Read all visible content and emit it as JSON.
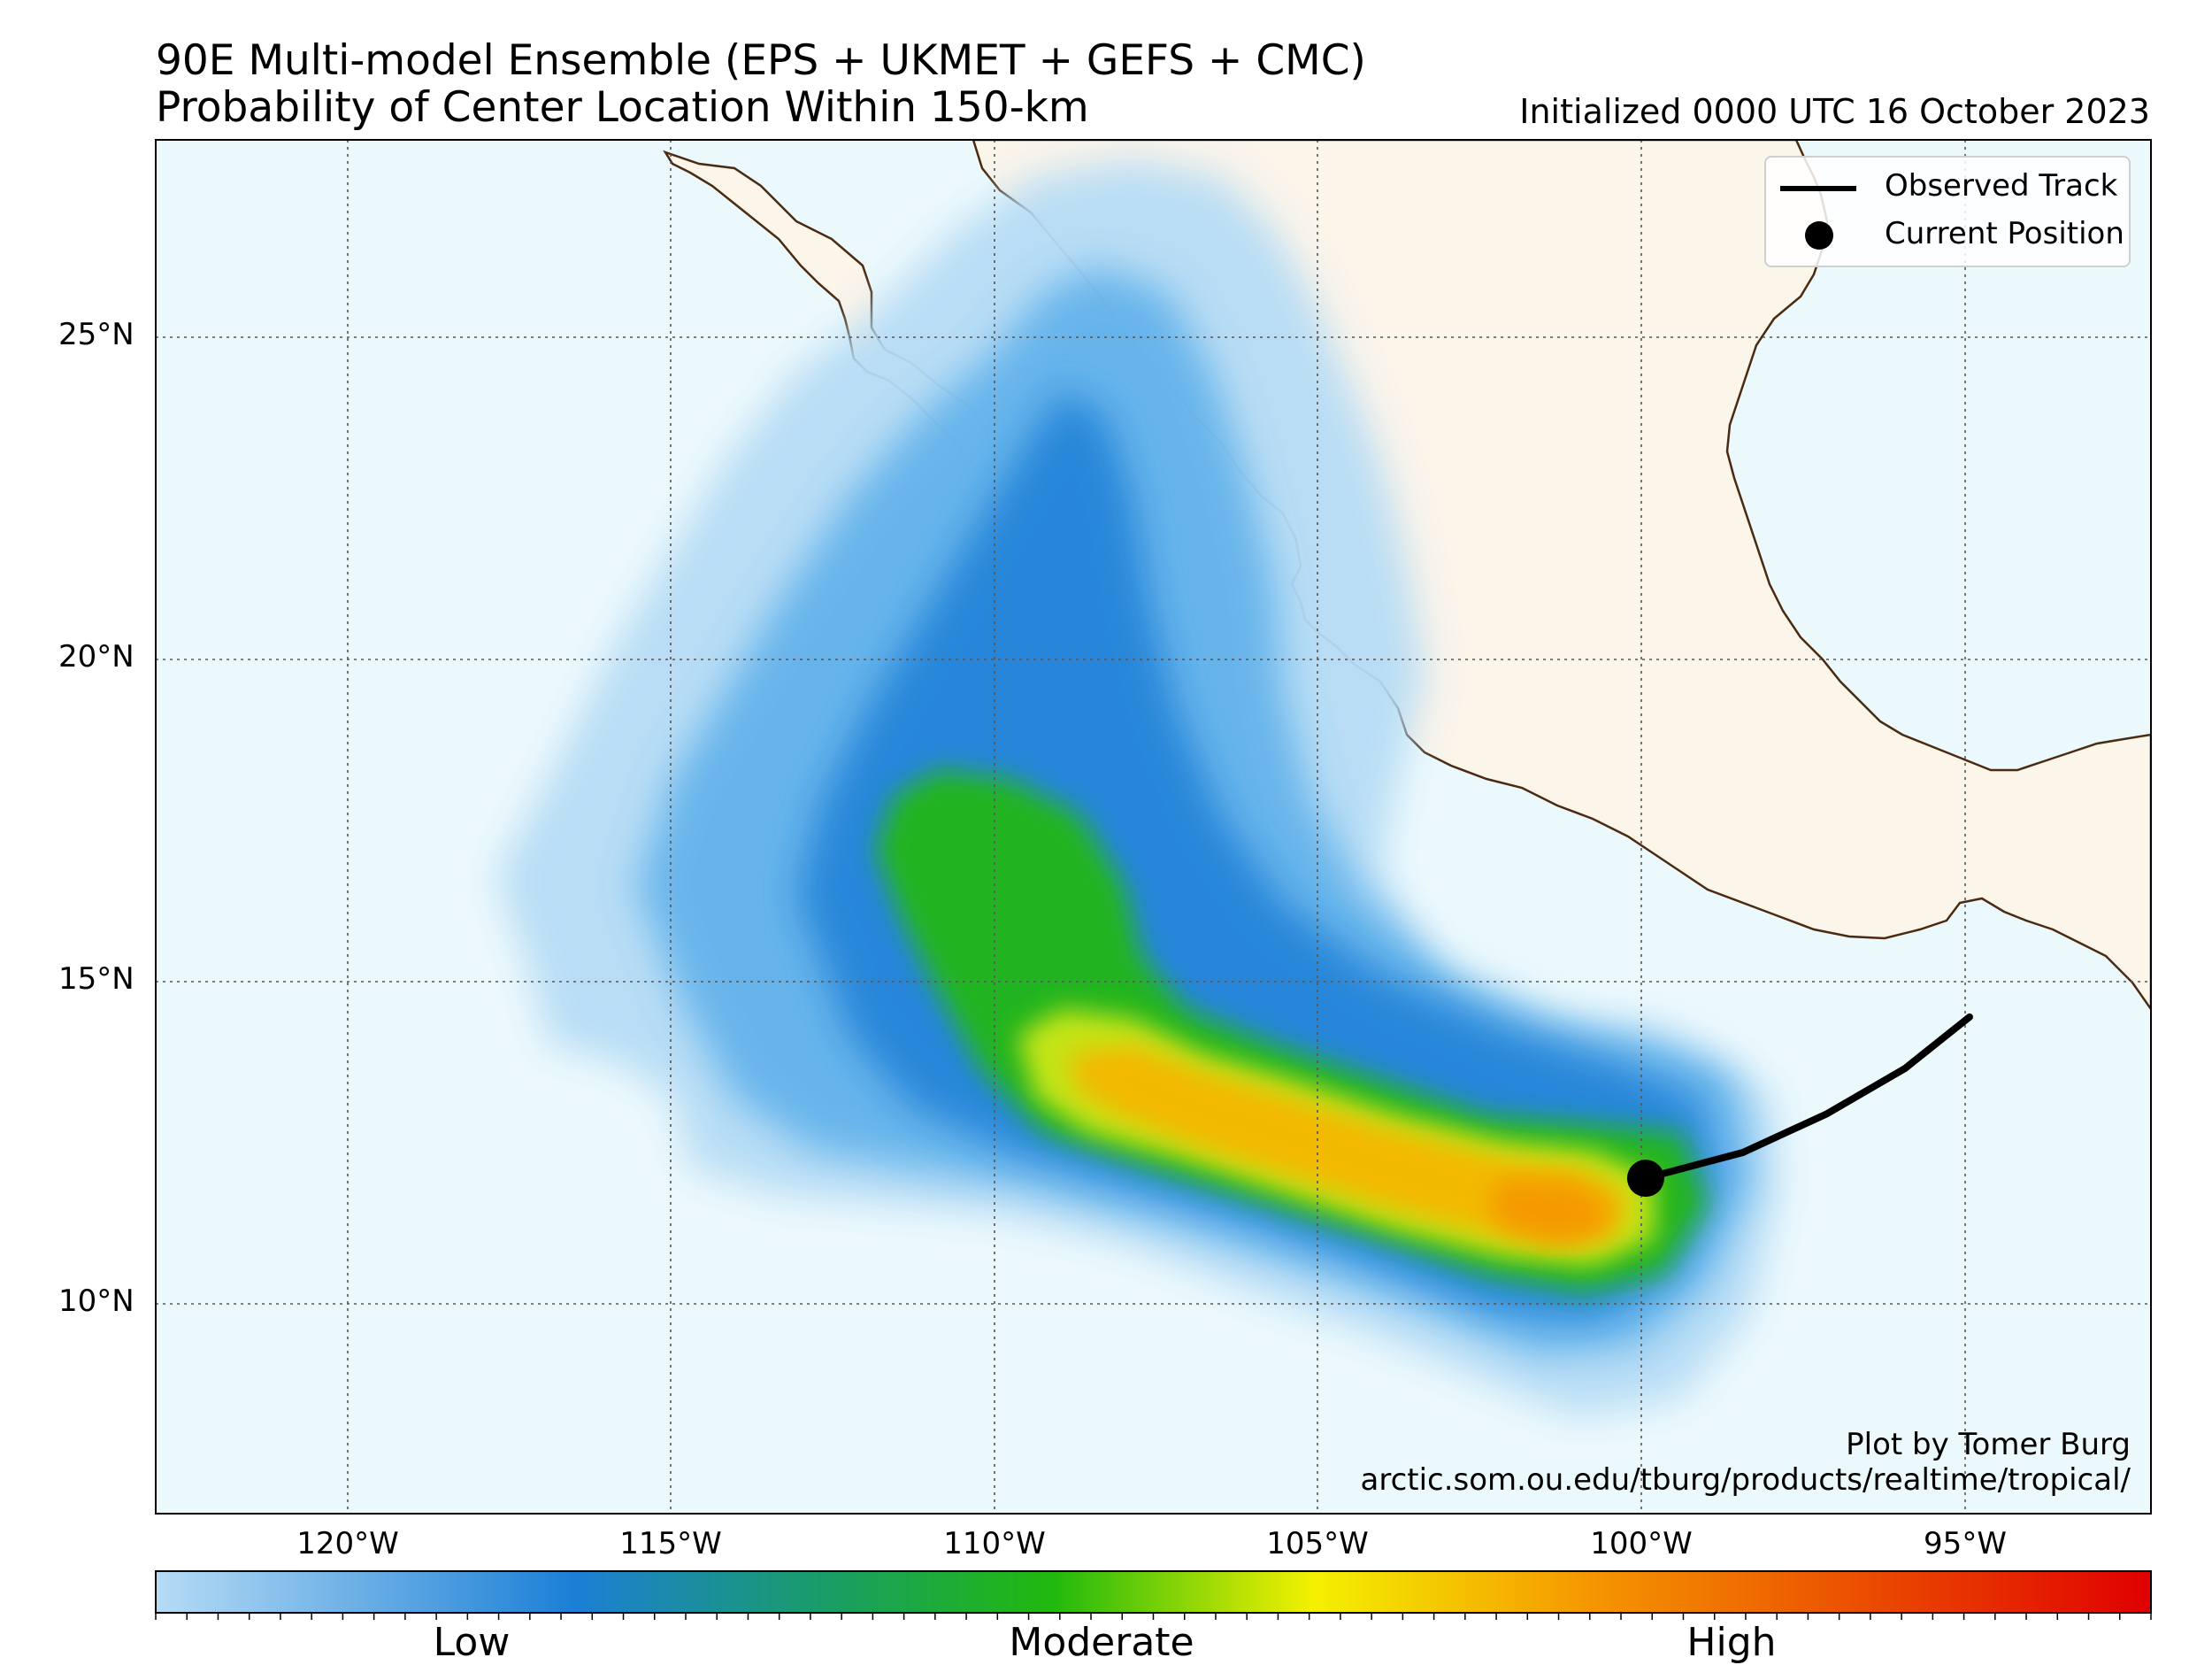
{
  "header": {
    "title_line1": "90E Multi-model Ensemble (EPS + UKMET + GEFS + CMC)",
    "title_line2": "Probability of Center Location Within 150-km",
    "initialized": "Initialized 0000 UTC 16 October 2023"
  },
  "legend": {
    "track_label": "Observed Track",
    "position_label": "Current Position"
  },
  "credit": {
    "line1": "Plot by Tomer Burg",
    "line2": "arctic.som.ou.edu/tburg/products/realtime/tropical/"
  },
  "axes": {
    "lat_labels": [
      "25°N",
      "20°N",
      "15°N",
      "10°N"
    ],
    "lon_labels": [
      "120°W",
      "115°W",
      "110°W",
      "105°W",
      "100°W",
      "95°W"
    ]
  },
  "colorbar": {
    "labels": [
      "Low",
      "Moderate",
      "High"
    ],
    "colors": [
      "#b6dcf5",
      "#1b7fd6",
      "#21b90d",
      "#f4f100",
      "#f59600",
      "#e00000"
    ]
  },
  "track": {
    "current_position": {
      "lon": -100.0,
      "lat": 12.0
    },
    "observed_points": [
      {
        "lon": -95.0,
        "lat": 14.5
      },
      {
        "lon": -96.0,
        "lat": 13.7
      },
      {
        "lon": -97.2,
        "lat": 13.0
      },
      {
        "lon": -98.5,
        "lat": 12.4
      },
      {
        "lon": -100.0,
        "lat": 12.0
      }
    ]
  },
  "map_extent": {
    "lon_min": -123.0,
    "lon_max": -92.2,
    "lat_min": 6.8,
    "lat_max": 28.1
  },
  "colors": {
    "ocean": "#ecf9fc",
    "land": "#fbf5ea",
    "coast": "#4a2a10"
  }
}
